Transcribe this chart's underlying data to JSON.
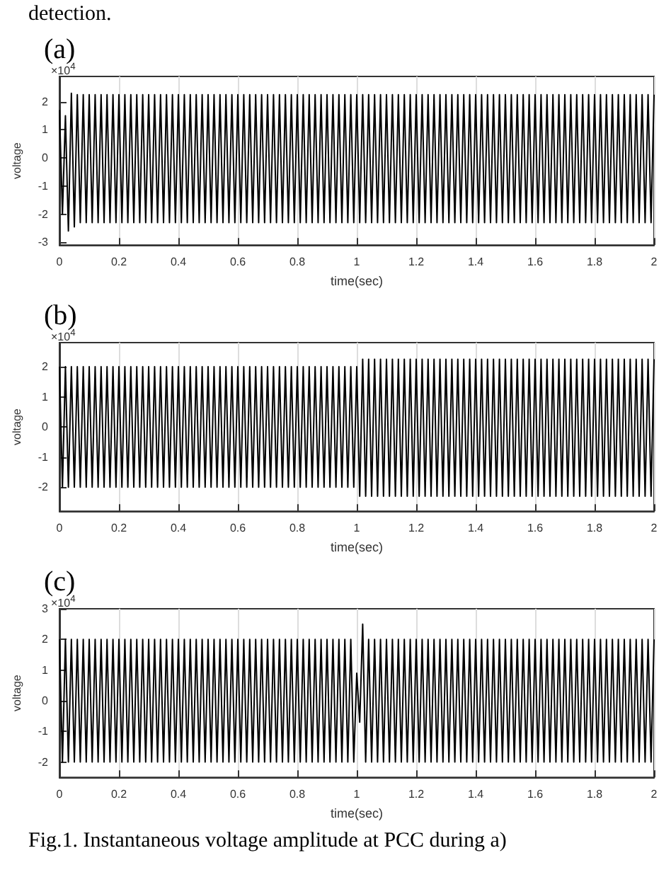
{
  "chart_data": [
    {
      "type": "line",
      "title": "(a)",
      "xlabel": "time(sec)",
      "ylabel": "voltage",
      "annotations": [
        "×10$^{4}$",
        "detection."
      ],
      "color": "#000000",
      "grid": "x",
      "xlim": [
        0,
        2
      ],
      "xticks": [
        0,
        0.2,
        0.4,
        0.6,
        0.8,
        1,
        1.2,
        1.4,
        1.6,
        1.8,
        2
      ],
      "ylim": [
        -3.1,
        2.9
      ],
      "yticks": [
        -3,
        -2,
        -1,
        0,
        1,
        2
      ],
      "x": [
        0,
        0.01,
        0.02,
        0.03,
        0.04,
        0.05,
        0.06,
        0.07,
        0.08,
        0.09,
        0.1,
        0.11,
        0.12,
        0.13,
        0.14,
        0.15,
        0.16,
        0.17,
        0.18,
        0.19,
        0.2,
        0.21,
        0.22,
        0.23,
        0.24,
        0.25,
        0.26,
        0.27,
        0.28,
        0.29,
        0.3,
        0.31,
        0.32,
        0.33,
        0.34,
        0.35,
        0.36,
        0.37,
        0.38,
        0.39,
        0.4,
        0.41,
        0.42,
        0.43,
        0.44,
        0.45,
        0.46,
        0.47,
        0.48,
        0.49,
        0.5,
        0.51,
        0.52,
        0.53,
        0.54,
        0.55,
        0.56,
        0.57,
        0.58,
        0.59,
        0.6,
        0.61,
        0.62,
        0.63,
        0.64,
        0.65,
        0.66,
        0.67,
        0.68,
        0.69,
        0.7,
        0.71,
        0.72,
        0.73,
        0.74,
        0.75,
        0.76,
        0.77,
        0.78,
        0.79,
        0.8,
        0.81,
        0.82,
        0.83,
        0.84,
        0.85,
        0.86,
        0.87,
        0.88,
        0.89,
        0.9,
        0.91,
        0.92,
        0.93,
        0.94,
        0.95,
        0.96,
        0.97,
        0.98,
        0.99,
        1,
        1.01,
        1.02,
        1.03,
        1.04,
        1.05,
        1.06,
        1.07,
        1.08,
        1.09,
        1.1,
        1.11,
        1.12,
        1.13,
        1.14,
        1.15,
        1.16,
        1.17,
        1.18,
        1.19,
        1.2,
        1.21,
        1.22,
        1.23,
        1.24,
        1.25,
        1.26,
        1.27,
        1.28,
        1.29,
        1.3,
        1.31,
        1.32,
        1.33,
        1.34,
        1.35,
        1.36,
        1.37,
        1.38,
        1.39,
        1.4,
        1.41,
        1.42,
        1.43,
        1.44,
        1.45,
        1.46,
        1.47,
        1.48,
        1.49,
        1.5,
        1.51,
        1.52,
        1.53,
        1.54,
        1.55,
        1.56,
        1.57,
        1.58,
        1.59,
        1.6,
        1.61,
        1.62,
        1.63,
        1.64,
        1.65,
        1.66,
        1.67,
        1.68,
        1.69,
        1.7,
        1.71,
        1.72,
        1.73,
        1.74,
        1.75,
        1.76,
        1.77,
        1.78,
        1.79,
        1.8,
        1.81,
        1.82,
        1.83,
        1.84,
        1.85,
        1.86,
        1.87,
        1.88,
        1.89,
        1.9,
        1.91,
        1.92,
        1.93,
        1.94,
        1.95,
        1.96,
        1.97,
        1.98,
        1.99,
        2
      ],
      "values": [
        1.7,
        -2.0,
        1.5,
        -2.6,
        2.3,
        -2.45,
        2.25,
        -2.3,
        2.25,
        -2.3,
        2.25,
        -2.3,
        2.25,
        -2.3,
        2.25,
        -2.3,
        2.25,
        -2.3,
        2.25,
        -2.3,
        2.25,
        -2.3,
        2.25,
        -2.3,
        2.25,
        -2.3,
        2.25,
        -2.3,
        2.25,
        -2.3,
        2.25,
        -2.3,
        2.25,
        -2.3,
        2.25,
        -2.3,
        2.25,
        -2.3,
        2.25,
        -2.3,
        2.25,
        -2.3,
        2.25,
        -2.3,
        2.25,
        -2.3,
        2.25,
        -2.3,
        2.25,
        -2.3,
        2.25,
        -2.3,
        2.25,
        -2.3,
        2.25,
        -2.3,
        2.25,
        -2.3,
        2.25,
        -2.3,
        2.25,
        -2.3,
        2.25,
        -2.3,
        2.25,
        -2.3,
        2.25,
        -2.3,
        2.25,
        -2.3,
        2.25,
        -2.3,
        2.25,
        -2.3,
        2.25,
        -2.3,
        2.25,
        -2.3,
        2.25,
        -2.3,
        2.25,
        -2.3,
        2.25,
        -2.3,
        2.25,
        -2.3,
        2.25,
        -2.3,
        2.25,
        -2.3,
        2.25,
        -2.3,
        2.25,
        -2.3,
        2.25,
        -2.3,
        2.25,
        -2.3,
        2.25,
        -2.3,
        2.25,
        -2.3,
        2.25,
        -2.3,
        2.25,
        -2.3,
        2.25,
        -2.3,
        2.25,
        -2.3,
        2.25,
        -2.3,
        2.25,
        -2.3,
        2.25,
        -2.3,
        2.25,
        -2.3,
        2.25,
        -2.3,
        2.25,
        -2.3,
        2.25,
        -2.3,
        2.25,
        -2.3,
        2.25,
        -2.3,
        2.25,
        -2.3,
        2.25,
        -2.3,
        2.25,
        -2.3,
        2.25,
        -2.3,
        2.25,
        -2.3,
        2.25,
        -2.3,
        2.25,
        -2.3,
        2.25,
        -2.3,
        2.25,
        -2.3,
        2.25,
        -2.3,
        2.25,
        -2.3,
        2.25,
        -2.3,
        2.25,
        -2.3,
        2.25,
        -2.3,
        2.25,
        -2.3,
        2.25,
        -2.3,
        2.25,
        -2.3,
        2.25,
        -2.3,
        2.25,
        -2.3,
        2.25,
        -2.3,
        2.25,
        -2.3,
        2.25,
        -2.3,
        2.25,
        -2.3,
        2.25,
        -2.3,
        2.25,
        -2.3,
        2.25,
        -2.3,
        2.25,
        -2.3,
        2.25,
        -2.3,
        2.25,
        -2.3,
        2.25,
        -2.3,
        2.25,
        -2.3,
        2.25,
        -2.3,
        2.25,
        -2.3,
        2.25,
        -2.3,
        2.25,
        -2.3,
        2.25,
        -2.3,
        2.25
      ]
    },
    {
      "type": "line",
      "title": "(b)",
      "xlabel": "time(sec)",
      "ylabel": "voltage",
      "annotations": [
        "×10$^{4}$"
      ],
      "color": "#000000",
      "grid": "x",
      "xlim": [
        0,
        2
      ],
      "xticks": [
        0,
        0.2,
        0.4,
        0.6,
        0.8,
        1,
        1.2,
        1.4,
        1.6,
        1.8,
        2
      ],
      "ylim": [
        -2.8,
        2.8
      ],
      "yticks": [
        -2,
        -1,
        0,
        1,
        2
      ],
      "x": [
        0,
        0.01,
        0.02,
        0.03,
        0.04,
        0.05,
        0.06,
        0.07,
        0.08,
        0.09,
        0.1,
        0.11,
        0.12,
        0.13,
        0.14,
        0.15,
        0.16,
        0.17,
        0.18,
        0.19,
        0.2,
        0.21,
        0.22,
        0.23,
        0.24,
        0.25,
        0.26,
        0.27,
        0.28,
        0.29,
        0.3,
        0.31,
        0.32,
        0.33,
        0.34,
        0.35,
        0.36,
        0.37,
        0.38,
        0.39,
        0.4,
        0.41,
        0.42,
        0.43,
        0.44,
        0.45,
        0.46,
        0.47,
        0.48,
        0.49,
        0.5,
        0.51,
        0.52,
        0.53,
        0.54,
        0.55,
        0.56,
        0.57,
        0.58,
        0.59,
        0.6,
        0.61,
        0.62,
        0.63,
        0.64,
        0.65,
        0.66,
        0.67,
        0.68,
        0.69,
        0.7,
        0.71,
        0.72,
        0.73,
        0.74,
        0.75,
        0.76,
        0.77,
        0.78,
        0.79,
        0.8,
        0.81,
        0.82,
        0.83,
        0.84,
        0.85,
        0.86,
        0.87,
        0.88,
        0.89,
        0.9,
        0.91,
        0.92,
        0.93,
        0.94,
        0.95,
        0.96,
        0.97,
        0.98,
        0.99,
        1,
        1.01,
        1.02,
        1.03,
        1.04,
        1.05,
        1.06,
        1.07,
        1.08,
        1.09,
        1.1,
        1.11,
        1.12,
        1.13,
        1.14,
        1.15,
        1.16,
        1.17,
        1.18,
        1.19,
        1.2,
        1.21,
        1.22,
        1.23,
        1.24,
        1.25,
        1.26,
        1.27,
        1.28,
        1.29,
        1.3,
        1.31,
        1.32,
        1.33,
        1.34,
        1.35,
        1.36,
        1.37,
        1.38,
        1.39,
        1.4,
        1.41,
        1.42,
        1.43,
        1.44,
        1.45,
        1.46,
        1.47,
        1.48,
        1.49,
        1.5,
        1.51,
        1.52,
        1.53,
        1.54,
        1.55,
        1.56,
        1.57,
        1.58,
        1.59,
        1.6,
        1.61,
        1.62,
        1.63,
        1.64,
        1.65,
        1.66,
        1.67,
        1.68,
        1.69,
        1.7,
        1.71,
        1.72,
        1.73,
        1.74,
        1.75,
        1.76,
        1.77,
        1.78,
        1.79,
        1.8,
        1.81,
        1.82,
        1.83,
        1.84,
        1.85,
        1.86,
        1.87,
        1.88,
        1.89,
        1.9,
        1.91,
        1.92,
        1.93,
        1.94,
        1.95,
        1.96,
        1.97,
        1.98,
        1.99,
        2
      ],
      "values": [
        2,
        -2,
        2,
        -2,
        2,
        -2,
        2,
        -2,
        2,
        -2,
        2,
        -2,
        2,
        -2,
        2,
        -2,
        2,
        -2,
        2,
        -2,
        2,
        -2,
        2,
        -2,
        2,
        -2,
        2,
        -2,
        2,
        -2,
        2,
        -2,
        2,
        -2,
        2,
        -2,
        2,
        -2,
        2,
        -2,
        2,
        -2,
        2,
        -2,
        2,
        -2,
        2,
        -2,
        2,
        -2,
        2,
        -2,
        2,
        -2,
        2,
        -2,
        2,
        -2,
        2,
        -2,
        2,
        -2,
        2,
        -2,
        2,
        -2,
        2,
        -2,
        2,
        -2,
        2,
        -2,
        2,
        -2,
        2,
        -2,
        2,
        -2,
        2,
        -2,
        2,
        -2,
        2,
        -2,
        2,
        -2,
        2,
        -2,
        2,
        -2,
        2,
        -2,
        2,
        -2,
        2,
        -2,
        2,
        -2,
        2,
        -2,
        2,
        -2.3,
        2.25,
        -2.3,
        2.25,
        -2.3,
        2.25,
        -2.3,
        2.25,
        -2.3,
        2.25,
        -2.3,
        2.25,
        -2.3,
        2.25,
        -2.3,
        2.25,
        -2.3,
        2.25,
        -2.3,
        2.25,
        -2.3,
        2.25,
        -2.3,
        2.25,
        -2.3,
        2.25,
        -2.3,
        2.25,
        -2.3,
        2.25,
        -2.3,
        2.25,
        -2.3,
        2.25,
        -2.3,
        2.25,
        -2.3,
        2.25,
        -2.3,
        2.25,
        -2.3,
        2.25,
        -2.3,
        2.25,
        -2.3,
        2.25,
        -2.3,
        2.25,
        -2.3,
        2.25,
        -2.3,
        2.25,
        -2.3,
        2.25,
        -2.3,
        2.25,
        -2.3,
        2.25,
        -2.3,
        2.25,
        -2.3,
        2.25,
        -2.3,
        2.25,
        -2.3,
        2.25,
        -2.3,
        2.25,
        -2.3,
        2.25,
        -2.3,
        2.25,
        -2.3,
        2.25,
        -2.3,
        2.25,
        -2.3,
        2.25,
        -2.3,
        2.25,
        -2.3,
        2.25,
        -2.3,
        2.25,
        -2.3,
        2.25,
        -2.3,
        2.25,
        -2.3,
        2.25,
        -2.3,
        2.25,
        -2.3,
        2.25,
        -2.3,
        2.25,
        -2.3,
        2.25,
        -2.3,
        2.25
      ]
    },
    {
      "type": "line",
      "title": "(c)",
      "xlabel": "time(sec)",
      "ylabel": "voltage",
      "annotations": [
        "×10$^{4}$",
        "Fig.1. Instantaneous voltage amplitude at PCC during a)"
      ],
      "color": "#000000",
      "grid": "x",
      "xlim": [
        0,
        2
      ],
      "xticks": [
        0,
        0.2,
        0.4,
        0.6,
        0.8,
        1,
        1.2,
        1.4,
        1.6,
        1.8,
        2
      ],
      "ylim": [
        -2.5,
        3
      ],
      "yticks": [
        -2,
        -1,
        0,
        1,
        2,
        3
      ],
      "x": [
        0,
        0.01,
        0.02,
        0.03,
        0.04,
        0.05,
        0.06,
        0.07,
        0.08,
        0.09,
        0.1,
        0.11,
        0.12,
        0.13,
        0.14,
        0.15,
        0.16,
        0.17,
        0.18,
        0.19,
        0.2,
        0.21,
        0.22,
        0.23,
        0.24,
        0.25,
        0.26,
        0.27,
        0.28,
        0.29,
        0.3,
        0.31,
        0.32,
        0.33,
        0.34,
        0.35,
        0.36,
        0.37,
        0.38,
        0.39,
        0.4,
        0.41,
        0.42,
        0.43,
        0.44,
        0.45,
        0.46,
        0.47,
        0.48,
        0.49,
        0.5,
        0.51,
        0.52,
        0.53,
        0.54,
        0.55,
        0.56,
        0.57,
        0.58,
        0.59,
        0.6,
        0.61,
        0.62,
        0.63,
        0.64,
        0.65,
        0.66,
        0.67,
        0.68,
        0.69,
        0.7,
        0.71,
        0.72,
        0.73,
        0.74,
        0.75,
        0.76,
        0.77,
        0.78,
        0.79,
        0.8,
        0.81,
        0.82,
        0.83,
        0.84,
        0.85,
        0.86,
        0.87,
        0.88,
        0.89,
        0.9,
        0.91,
        0.92,
        0.93,
        0.94,
        0.95,
        0.96,
        0.97,
        0.98,
        0.99,
        1,
        1.01,
        1.02,
        1.03,
        1.04,
        1.05,
        1.06,
        1.07,
        1.08,
        1.09,
        1.1,
        1.11,
        1.12,
        1.13,
        1.14,
        1.15,
        1.16,
        1.17,
        1.18,
        1.19,
        1.2,
        1.21,
        1.22,
        1.23,
        1.24,
        1.25,
        1.26,
        1.27,
        1.28,
        1.29,
        1.3,
        1.31,
        1.32,
        1.33,
        1.34,
        1.35,
        1.36,
        1.37,
        1.38,
        1.39,
        1.4,
        1.41,
        1.42,
        1.43,
        1.44,
        1.45,
        1.46,
        1.47,
        1.48,
        1.49,
        1.5,
        1.51,
        1.52,
        1.53,
        1.54,
        1.55,
        1.56,
        1.57,
        1.58,
        1.59,
        1.6,
        1.61,
        1.62,
        1.63,
        1.64,
        1.65,
        1.66,
        1.67,
        1.68,
        1.69,
        1.7,
        1.71,
        1.72,
        1.73,
        1.74,
        1.75,
        1.76,
        1.77,
        1.78,
        1.79,
        1.8,
        1.81,
        1.82,
        1.83,
        1.84,
        1.85,
        1.86,
        1.87,
        1.88,
        1.89,
        1.9,
        1.91,
        1.92,
        1.93,
        1.94,
        1.95,
        1.96,
        1.97,
        1.98,
        1.99,
        2
      ],
      "values": [
        2,
        -2,
        2,
        -2,
        2,
        -2,
        2,
        -2,
        2,
        -2,
        2,
        -2,
        2,
        -2,
        2,
        -2,
        2,
        -2,
        2,
        -2,
        2,
        -2,
        2,
        -2,
        2,
        -2,
        2,
        -2,
        2,
        -2,
        2,
        -2,
        2,
        -2,
        2,
        -2,
        2,
        -2,
        2,
        -2,
        2,
        -2,
        2,
        -2,
        2,
        -2,
        2,
        -2,
        2,
        -2,
        2,
        -2,
        2,
        -2,
        2,
        -2,
        2,
        -2,
        2,
        -2,
        2,
        -2,
        2,
        -2,
        2,
        -2,
        2,
        -2,
        2,
        -2,
        2,
        -2,
        2,
        -2,
        2,
        -2,
        2,
        -2,
        2,
        -2,
        2,
        -2,
        2,
        -2,
        2,
        -2,
        2,
        -2,
        2,
        -2,
        2,
        -2,
        2,
        -2,
        2,
        -2,
        2,
        -2,
        2,
        -2,
        0.9,
        -0.7,
        2.5,
        -2,
        2,
        -2,
        2,
        -2,
        2,
        -2,
        2,
        -2,
        2,
        -2,
        2,
        -2,
        2,
        -2,
        2,
        -2,
        2,
        -2,
        2,
        -2,
        2,
        -2,
        2,
        -2,
        2,
        -2,
        2,
        -2,
        2,
        -2,
        2,
        -2,
        2,
        -2,
        2,
        -2,
        2,
        -2,
        2,
        -2,
        2,
        -2,
        2,
        -2,
        2,
        -2,
        2,
        -2,
        2,
        -2,
        2,
        -2,
        2,
        -2,
        2,
        -2,
        2,
        -2,
        2,
        -2,
        2,
        -2,
        2,
        -2,
        2,
        -2,
        2,
        -2,
        2,
        -2,
        2,
        -2,
        2,
        -2,
        2,
        -2,
        2,
        -2,
        2,
        -2,
        2,
        -2,
        2,
        -2,
        2,
        -2,
        2,
        -2,
        2,
        -2,
        2,
        -2,
        2,
        -2,
        2,
        -2,
        2
      ]
    }
  ]
}
